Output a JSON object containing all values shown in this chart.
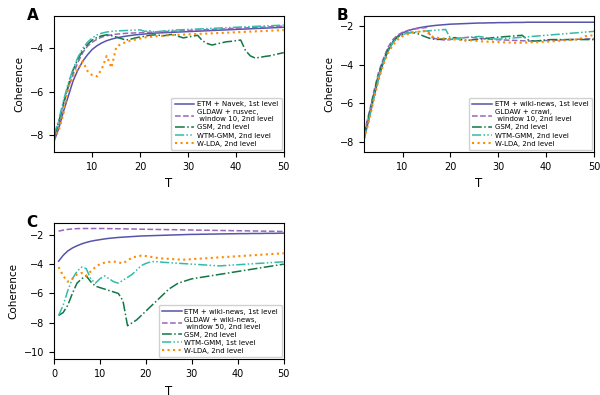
{
  "colors": {
    "ETM": "#5555aa",
    "GLDAW": "#9966bb",
    "GSM": "#117744",
    "WTM": "#33bbaa",
    "WLDA": "#ff8c00"
  },
  "T_AB": [
    2,
    3,
    4,
    5,
    6,
    7,
    8,
    9,
    10,
    11,
    12,
    13,
    14,
    15,
    16,
    17,
    18,
    19,
    20,
    21,
    22,
    23,
    24,
    25,
    26,
    27,
    28,
    29,
    30,
    31,
    32,
    33,
    34,
    35,
    36,
    37,
    38,
    39,
    40,
    41,
    42,
    43,
    44,
    45,
    46,
    47,
    48,
    49,
    50
  ],
  "T_C": [
    1,
    2,
    3,
    4,
    5,
    6,
    7,
    8,
    9,
    10,
    11,
    12,
    13,
    14,
    15,
    16,
    17,
    18,
    19,
    20,
    21,
    22,
    23,
    24,
    25,
    26,
    27,
    28,
    29,
    30,
    31,
    32,
    33,
    34,
    35,
    36,
    37,
    38,
    39,
    40,
    41,
    42,
    43,
    44,
    45,
    46,
    47,
    48,
    49,
    50
  ],
  "panel_A": {
    "ylim": [
      -8.8,
      -2.5
    ],
    "yticks": [
      -8,
      -6,
      -4
    ],
    "ylabel": "Coherence",
    "xlabel": "T",
    "legend_labels": [
      "ETM + Navek, 1st level",
      "GLDAW + rusvec,\n window 10, 2nd level",
      "GSM, 2nd level",
      "WTM-GMM, 2nd level",
      "W-LDA, 2nd level"
    ],
    "ETM": [
      -8.3,
      -7.7,
      -6.9,
      -6.2,
      -5.5,
      -5.0,
      -4.6,
      -4.3,
      -4.05,
      -3.88,
      -3.75,
      -3.65,
      -3.58,
      -3.52,
      -3.48,
      -3.44,
      -3.41,
      -3.38,
      -3.36,
      -3.34,
      -3.32,
      -3.3,
      -3.29,
      -3.28,
      -3.27,
      -3.26,
      -3.25,
      -3.24,
      -3.23,
      -3.22,
      -3.21,
      -3.2,
      -3.19,
      -3.18,
      -3.17,
      -3.16,
      -3.15,
      -3.14,
      -3.13,
      -3.12,
      -3.11,
      -3.1,
      -3.09,
      -3.08,
      -3.07,
      -3.06,
      -3.05,
      -3.04,
      -3.03
    ],
    "GLDAW": [
      -8.2,
      -7.5,
      -6.6,
      -5.8,
      -5.2,
      -4.65,
      -4.2,
      -3.9,
      -3.72,
      -3.58,
      -3.48,
      -3.42,
      -3.38,
      -3.35,
      -3.33,
      -3.31,
      -3.3,
      -3.29,
      -3.28,
      -3.27,
      -3.26,
      -3.25,
      -3.24,
      -3.23,
      -3.22,
      -3.21,
      -3.2,
      -3.19,
      -3.18,
      -3.17,
      -3.16,
      -3.15,
      -3.14,
      -3.13,
      -3.12,
      -3.11,
      -3.1,
      -3.09,
      -3.08,
      -3.07,
      -3.06,
      -3.05,
      -3.04,
      -3.03,
      -3.02,
      -3.01,
      -3.0,
      -2.99,
      -2.98
    ],
    "GSM": [
      -8.1,
      -7.4,
      -6.5,
      -5.7,
      -5.0,
      -4.5,
      -4.1,
      -3.82,
      -3.62,
      -3.5,
      -3.42,
      -3.38,
      -3.42,
      -3.48,
      -3.55,
      -3.62,
      -3.58,
      -3.52,
      -3.48,
      -3.44,
      -3.4,
      -3.38,
      -3.4,
      -3.42,
      -3.38,
      -3.35,
      -3.45,
      -3.52,
      -3.48,
      -3.44,
      -3.4,
      -3.65,
      -3.78,
      -3.85,
      -3.8,
      -3.75,
      -3.7,
      -3.68,
      -3.65,
      -3.62,
      -4.1,
      -4.35,
      -4.45,
      -4.42,
      -4.38,
      -4.35,
      -4.3,
      -4.25,
      -4.2
    ],
    "WTM": [
      -8.0,
      -7.3,
      -6.4,
      -5.6,
      -4.95,
      -4.42,
      -4.0,
      -3.72,
      -3.52,
      -3.38,
      -3.3,
      -3.25,
      -3.22,
      -3.2,
      -3.19,
      -3.18,
      -3.17,
      -3.16,
      -3.15,
      -3.22,
      -3.19,
      -3.25,
      -3.22,
      -3.2,
      -3.18,
      -3.16,
      -3.15,
      -3.14,
      -3.13,
      -3.12,
      -3.11,
      -3.1,
      -3.09,
      -3.08,
      -3.07,
      -3.06,
      -3.05,
      -3.04,
      -3.03,
      -3.02,
      -3.01,
      -3.0,
      -2.99,
      -2.98,
      -2.97,
      -2.96,
      -2.95,
      -2.94,
      -2.93
    ],
    "WLDA": [
      -8.2,
      -7.8,
      -7.0,
      -5.8,
      -5.3,
      -4.95,
      -4.6,
      -5.05,
      -5.25,
      -5.3,
      -4.95,
      -4.35,
      -4.9,
      -3.95,
      -3.8,
      -3.72,
      -3.65,
      -3.6,
      -3.55,
      -3.5,
      -3.48,
      -3.45,
      -3.43,
      -3.42,
      -3.4,
      -3.39,
      -3.38,
      -3.37,
      -3.36,
      -3.35,
      -3.34,
      -3.33,
      -3.32,
      -3.31,
      -3.3,
      -3.29,
      -3.28,
      -3.27,
      -3.26,
      -3.25,
      -3.24,
      -3.23,
      -3.22,
      -3.21,
      -3.2,
      -3.19,
      -3.18,
      -3.17,
      -3.16
    ]
  },
  "panel_B": {
    "ylim": [
      -8.5,
      -1.5
    ],
    "yticks": [
      -8,
      -6,
      -4,
      -2
    ],
    "ylabel": "Coherence",
    "xlabel": "T",
    "legend_labels": [
      "ETM + wiki-news, 1st level",
      "GLDAW + crawl,\n window 10, 2nd level",
      "GSM, 2nd level",
      "WTM-GMM, 2nd level",
      "W-LDA, 2nd level"
    ],
    "ETM": [
      -7.8,
      -6.8,
      -5.7,
      -4.7,
      -3.9,
      -3.3,
      -2.85,
      -2.55,
      -2.38,
      -2.28,
      -2.2,
      -2.14,
      -2.09,
      -2.05,
      -2.02,
      -1.99,
      -1.97,
      -1.95,
      -1.93,
      -1.92,
      -1.91,
      -1.9,
      -1.89,
      -1.88,
      -1.87,
      -1.87,
      -1.86,
      -1.86,
      -1.85,
      -1.85,
      -1.85,
      -1.84,
      -1.84,
      -1.84,
      -1.83,
      -1.83,
      -1.83,
      -1.83,
      -1.83,
      -1.83,
      -1.83,
      -1.83,
      -1.83,
      -1.83,
      -1.83,
      -1.83,
      -1.83,
      -1.83,
      -1.83
    ],
    "GLDAW": [
      -7.5,
      -6.5,
      -5.4,
      -4.4,
      -3.7,
      -3.1,
      -2.72,
      -2.48,
      -2.35,
      -2.26,
      -2.2,
      -2.16,
      -2.13,
      -2.1,
      -2.6,
      -2.68,
      -2.72,
      -2.75,
      -2.72,
      -2.68,
      -2.65,
      -2.62,
      -2.6,
      -2.62,
      -2.65,
      -2.68,
      -2.7,
      -2.72,
      -2.73,
      -2.74,
      -2.75,
      -2.76,
      -2.77,
      -2.78,
      -2.79,
      -2.8,
      -2.79,
      -2.78,
      -2.77,
      -2.76,
      -2.75,
      -2.74,
      -2.73,
      -2.72,
      -2.71,
      -2.7,
      -2.69,
      -2.68,
      -2.67
    ],
    "GSM": [
      -7.6,
      -6.6,
      -5.5,
      -4.5,
      -3.8,
      -3.2,
      -2.82,
      -2.58,
      -2.45,
      -2.38,
      -2.35,
      -2.4,
      -2.5,
      -2.6,
      -2.68,
      -2.72,
      -2.7,
      -2.68,
      -2.65,
      -2.62,
      -2.7,
      -2.78,
      -2.75,
      -2.72,
      -2.7,
      -2.68,
      -2.65,
      -2.62,
      -2.6,
      -2.58,
      -2.56,
      -2.54,
      -2.52,
      -2.5,
      -2.72,
      -2.78,
      -2.8,
      -2.76,
      -2.74,
      -2.72,
      -2.72,
      -2.72,
      -2.72,
      -2.72,
      -2.72,
      -2.72,
      -2.72,
      -2.72,
      -2.72
    ],
    "WTM": [
      -7.8,
      -6.8,
      -5.7,
      -4.7,
      -3.9,
      -3.3,
      -2.88,
      -2.62,
      -2.48,
      -2.38,
      -2.35,
      -2.32,
      -2.3,
      -2.28,
      -2.26,
      -2.24,
      -2.22,
      -2.2,
      -2.65,
      -2.68,
      -2.65,
      -2.62,
      -2.6,
      -2.58,
      -2.56,
      -2.6,
      -2.65,
      -2.68,
      -2.7,
      -2.68,
      -2.66,
      -2.64,
      -2.62,
      -2.6,
      -2.58,
      -2.56,
      -2.54,
      -2.52,
      -2.5,
      -2.48,
      -2.46,
      -2.44,
      -2.42,
      -2.4,
      -2.38,
      -2.36,
      -2.34,
      -2.32,
      -2.3
    ],
    "WLDA": [
      -7.8,
      -6.9,
      -5.8,
      -4.8,
      -4.0,
      -3.4,
      -3.0,
      -2.72,
      -2.55,
      -2.45,
      -2.38,
      -2.33,
      -2.3,
      -2.28,
      -2.55,
      -2.62,
      -2.65,
      -2.68,
      -2.7,
      -2.72,
      -2.73,
      -2.74,
      -2.75,
      -2.78,
      -2.8,
      -2.82,
      -2.83,
      -2.84,
      -2.85,
      -2.86,
      -2.87,
      -2.88,
      -2.89,
      -2.88,
      -2.87,
      -2.86,
      -2.85,
      -2.84,
      -2.83,
      -2.82,
      -2.8,
      -2.78,
      -2.76,
      -2.74,
      -2.72,
      -2.7,
      -2.55,
      -2.52,
      -2.5
    ]
  },
  "panel_C": {
    "ylim": [
      -10.5,
      -1.2
    ],
    "yticks": [
      -10,
      -8,
      -6,
      -4,
      -2
    ],
    "ylabel": "Coherence",
    "xlabel": "T",
    "legend_labels": [
      "ETM + wiki-news, 1st level",
      "GLDAW + wiki-news,\n window 50, 2nd level",
      "GSM, 2nd level",
      "WTM-GMM, 1st level",
      "W-LDA, 2nd level"
    ],
    "ETM": [
      -3.8,
      -3.4,
      -3.1,
      -2.9,
      -2.75,
      -2.62,
      -2.52,
      -2.44,
      -2.38,
      -2.33,
      -2.28,
      -2.24,
      -2.21,
      -2.18,
      -2.16,
      -2.14,
      -2.12,
      -2.1,
      -2.08,
      -2.07,
      -2.06,
      -2.05,
      -2.04,
      -2.03,
      -2.02,
      -2.01,
      -2.0,
      -1.99,
      -1.98,
      -1.97,
      -1.97,
      -1.96,
      -1.96,
      -1.95,
      -1.95,
      -1.94,
      -1.94,
      -1.93,
      -1.93,
      -1.92,
      -1.92,
      -1.92,
      -1.91,
      -1.91,
      -1.91,
      -1.9,
      -1.9,
      -1.9,
      -1.89,
      -1.89
    ],
    "GLDAW": [
      -1.75,
      -1.68,
      -1.63,
      -1.6,
      -1.58,
      -1.57,
      -1.57,
      -1.57,
      -1.57,
      -1.57,
      -1.57,
      -1.58,
      -1.58,
      -1.59,
      -1.59,
      -1.6,
      -1.6,
      -1.61,
      -1.62,
      -1.62,
      -1.63,
      -1.63,
      -1.64,
      -1.64,
      -1.65,
      -1.65,
      -1.66,
      -1.66,
      -1.67,
      -1.67,
      -1.68,
      -1.68,
      -1.69,
      -1.69,
      -1.7,
      -1.7,
      -1.71,
      -1.71,
      -1.72,
      -1.72,
      -1.73,
      -1.73,
      -1.74,
      -1.74,
      -1.75,
      -1.75,
      -1.76,
      -1.76,
      -1.77,
      -1.77
    ],
    "GSM": [
      -7.5,
      -7.3,
      -6.8,
      -6.0,
      -5.3,
      -5.0,
      -4.8,
      -5.2,
      -5.5,
      -5.6,
      -5.7,
      -5.8,
      -5.9,
      -6.0,
      -6.5,
      -8.2,
      -8.0,
      -7.8,
      -7.5,
      -7.2,
      -6.9,
      -6.6,
      -6.3,
      -6.0,
      -5.7,
      -5.5,
      -5.3,
      -5.2,
      -5.1,
      -5.0,
      -4.95,
      -4.9,
      -4.85,
      -4.8,
      -4.75,
      -4.7,
      -4.65,
      -4.6,
      -4.55,
      -4.5,
      -4.45,
      -4.4,
      -4.35,
      -4.3,
      -4.25,
      -4.2,
      -4.15,
      -4.1,
      -4.05,
      -4.0
    ],
    "WTM": [
      -7.5,
      -6.8,
      -5.8,
      -5.0,
      -4.5,
      -4.2,
      -4.3,
      -5.0,
      -5.3,
      -5.0,
      -4.8,
      -5.0,
      -5.2,
      -5.3,
      -5.1,
      -4.9,
      -4.7,
      -4.4,
      -4.1,
      -3.95,
      -3.85,
      -3.82,
      -3.85,
      -3.88,
      -3.9,
      -3.92,
      -3.94,
      -3.96,
      -3.98,
      -4.0,
      -4.02,
      -4.04,
      -4.06,
      -4.08,
      -4.1,
      -4.12,
      -4.1,
      -4.08,
      -4.06,
      -4.04,
      -4.02,
      -4.0,
      -3.98,
      -3.96,
      -3.94,
      -3.92,
      -3.9,
      -3.88,
      -3.86,
      -3.84
    ],
    "WLDA": [
      -4.2,
      -4.8,
      -5.2,
      -5.0,
      -4.7,
      -4.6,
      -4.8,
      -4.5,
      -4.2,
      -4.0,
      -3.9,
      -3.85,
      -3.82,
      -3.88,
      -3.95,
      -3.75,
      -3.55,
      -3.48,
      -3.42,
      -3.45,
      -3.5,
      -3.55,
      -3.6,
      -3.62,
      -3.64,
      -3.66,
      -3.68,
      -3.7,
      -3.68,
      -3.66,
      -3.64,
      -3.62,
      -3.6,
      -3.58,
      -3.56,
      -3.54,
      -3.52,
      -3.5,
      -3.48,
      -3.46,
      -3.44,
      -3.42,
      -3.4,
      -3.38,
      -3.36,
      -3.34,
      -3.32,
      -3.3,
      -3.28,
      -3.26
    ]
  }
}
